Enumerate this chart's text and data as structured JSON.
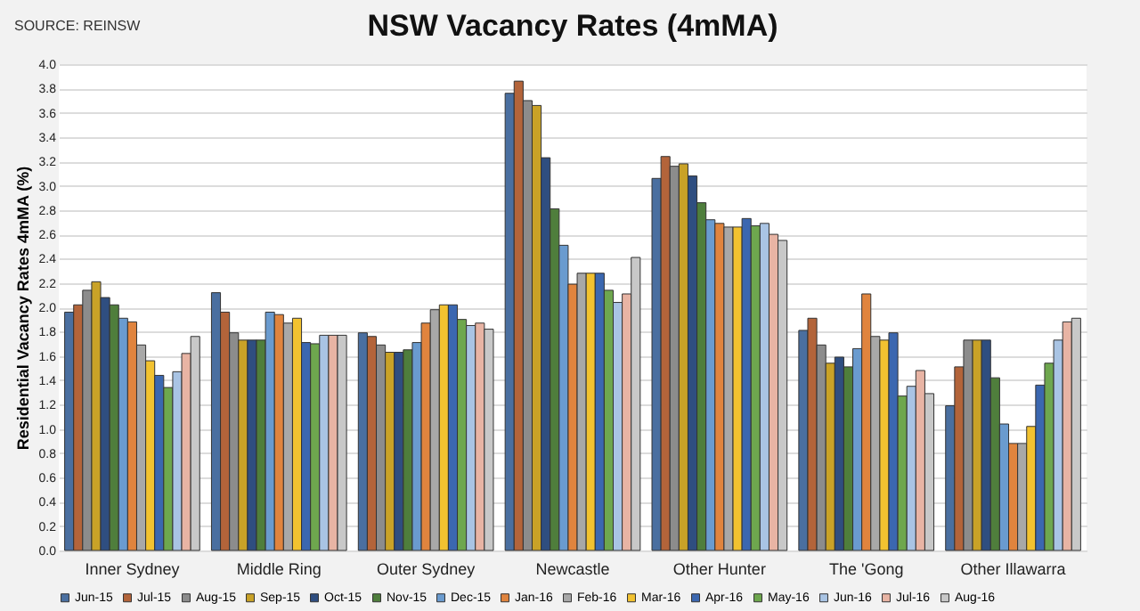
{
  "chart_data": {
    "type": "bar",
    "title": "NSW Vacancy Rates (4mMA)",
    "ylabel": "Residential Vacancy Rates 4mMA (%)",
    "annotations": [
      "SOURCE: REINSW"
    ],
    "categories": [
      "Inner Sydney",
      "Middle Ring",
      "Outer Sydney",
      "Newcastle",
      "Other Hunter",
      "The 'Gong",
      "Other Illawarra"
    ],
    "series": [
      {
        "name": "Jun-15",
        "color": "#4a6fa0",
        "values": [
          1.96,
          2.12,
          1.79,
          3.76,
          3.06,
          1.81,
          1.19
        ]
      },
      {
        "name": "Jul-15",
        "color": "#b3643a",
        "values": [
          2.02,
          1.96,
          1.76,
          3.86,
          3.24,
          1.91,
          1.51
        ]
      },
      {
        "name": "Aug-15",
        "color": "#8c8c8c",
        "values": [
          2.14,
          1.79,
          1.69,
          3.7,
          3.16,
          1.69,
          1.73
        ]
      },
      {
        "name": "Sep-15",
        "color": "#c9a227",
        "values": [
          2.21,
          1.73,
          1.63,
          3.66,
          3.18,
          1.54,
          1.73
        ]
      },
      {
        "name": "Oct-15",
        "color": "#2f4e80",
        "values": [
          2.08,
          1.73,
          1.63,
          3.23,
          3.08,
          1.59,
          1.73
        ]
      },
      {
        "name": "Nov-15",
        "color": "#4f7e3c",
        "values": [
          2.02,
          1.73,
          1.65,
          2.81,
          2.86,
          1.51,
          1.42
        ]
      },
      {
        "name": "Dec-15",
        "color": "#6a9bcf",
        "values": [
          1.91,
          1.96,
          1.71,
          2.51,
          2.72,
          1.66,
          1.04
        ]
      },
      {
        "name": "Jan-16",
        "color": "#e0843e",
        "values": [
          1.88,
          1.94,
          1.87,
          2.19,
          2.69,
          2.11,
          0.88
        ]
      },
      {
        "name": "Feb-16",
        "color": "#a8a8a8",
        "values": [
          1.69,
          1.87,
          1.98,
          2.28,
          2.66,
          1.76,
          0.88
        ]
      },
      {
        "name": "Mar-16",
        "color": "#f2c230",
        "values": [
          1.56,
          1.91,
          2.02,
          2.28,
          2.66,
          1.73,
          1.02
        ]
      },
      {
        "name": "Apr-16",
        "color": "#3b67b0",
        "values": [
          1.44,
          1.71,
          2.02,
          2.28,
          2.73,
          1.79,
          1.36
        ]
      },
      {
        "name": "May-16",
        "color": "#6ea74e",
        "values": [
          1.34,
          1.7,
          1.9,
          2.14,
          2.67,
          1.27,
          1.54
        ]
      },
      {
        "name": "Jun-16",
        "color": "#a9c4e4",
        "values": [
          1.47,
          1.77,
          1.85,
          2.04,
          2.69,
          1.35,
          1.73
        ]
      },
      {
        "name": "Jul-16",
        "color": "#e8b4a4",
        "values": [
          1.62,
          1.77,
          1.87,
          2.11,
          2.6,
          1.48,
          1.88
        ]
      },
      {
        "name": "Aug-16",
        "color": "#c8c8c8",
        "values": [
          1.76,
          1.77,
          1.82,
          2.41,
          2.55,
          1.29,
          1.91
        ]
      }
    ],
    "ylim": [
      0,
      4
    ],
    "yticks": [
      {
        "value": 0,
        "label": "0.0"
      },
      {
        "value": 0.2,
        "label": "0.2"
      },
      {
        "value": 0.4,
        "label": "0.4"
      },
      {
        "value": 0.6,
        "label": "0.6"
      },
      {
        "value": 0.8,
        "label": "0.8"
      },
      {
        "value": 1,
        "label": "1.0"
      },
      {
        "value": 1.2,
        "label": "1.2"
      },
      {
        "value": 1.4,
        "label": "1.4"
      },
      {
        "value": 1.6,
        "label": "1.6"
      },
      {
        "value": 1.8,
        "label": "1.8"
      },
      {
        "value": 2,
        "label": "2.0"
      },
      {
        "value": 2.2,
        "label": "2.2"
      },
      {
        "value": 2.4,
        "label": "2.4"
      },
      {
        "value": 2.6,
        "label": "2.6"
      },
      {
        "value": 2.8,
        "label": "2.8"
      },
      {
        "value": 3,
        "label": "3.0"
      },
      {
        "value": 3.2,
        "label": "3.2"
      },
      {
        "value": 3.4,
        "label": "3.4"
      },
      {
        "value": 3.6,
        "label": "3.6"
      },
      {
        "value": 3.8,
        "label": "3.8"
      },
      {
        "value": 4,
        "label": "4.0"
      }
    ],
    "grid": "y",
    "legend": "bottom"
  }
}
